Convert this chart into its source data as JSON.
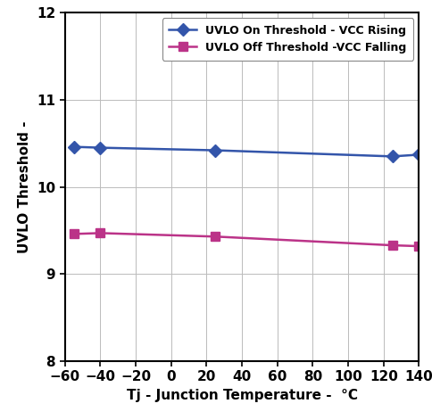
{
  "blue_x": [
    -55,
    -40,
    25,
    125,
    140
  ],
  "blue_y": [
    10.46,
    10.45,
    10.42,
    10.35,
    10.37
  ],
  "pink_x": [
    -55,
    -40,
    25,
    125,
    140
  ],
  "pink_y": [
    9.46,
    9.47,
    9.43,
    9.33,
    9.32
  ],
  "blue_color": "#3355aa",
  "pink_color": "#bb3388",
  "blue_label": "UVLO On Threshold - VCC Rising",
  "pink_label": "UVLO Off Threshold -VCC Falling",
  "xlabel": "Tj - Junction Temperature -  °C",
  "ylabel": "UVLO Threshold -",
  "xlim": [
    -60,
    140
  ],
  "ylim": [
    8,
    12
  ],
  "xticks": [
    -60,
    -40,
    -20,
    0,
    20,
    40,
    60,
    80,
    100,
    120,
    140
  ],
  "yticks": [
    8,
    9,
    10,
    11,
    12
  ],
  "background_color": "#ffffff",
  "tick_fontsize": 11,
  "label_fontsize": 11,
  "legend_fontsize": 9
}
